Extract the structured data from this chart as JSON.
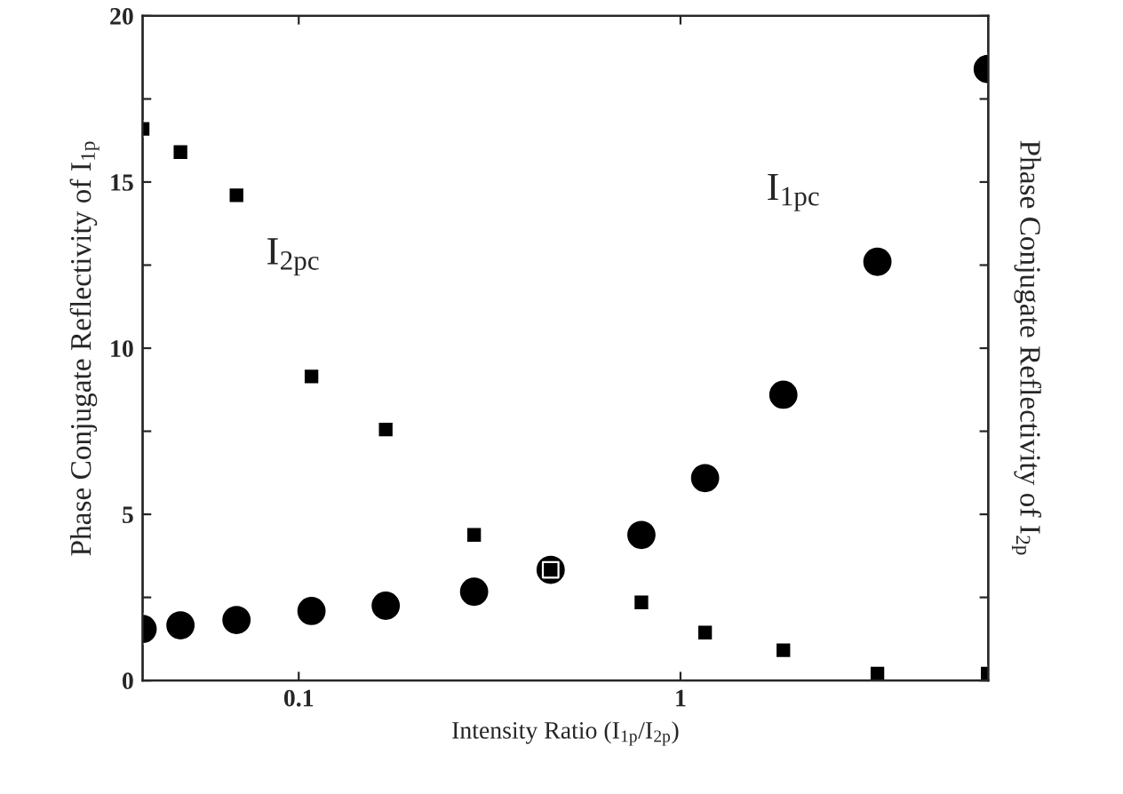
{
  "chart_data": {
    "type": "scatter",
    "xlabel": "Intensity Ratio (I$_{1p}$/I$_{2p}$)",
    "ylabel": "Phase Conjugate Reflectivity of I$_{1p}$",
    "y2label": "Phase Conjugate Reflectivity of I$_{2p}$",
    "log": "x",
    "xlim": [
      0.039,
      6.4
    ],
    "xticks": [
      0.1,
      1
    ],
    "ylim": [
      0,
      20
    ],
    "yticks": [
      0,
      {
        "value": 2.5,
        "label": null
      },
      5,
      {
        "value": 7.5,
        "label": null
      },
      10,
      {
        "value": 12.5,
        "label": null
      },
      15,
      {
        "value": 17.5,
        "label": null
      },
      20
    ],
    "grid": false,
    "legend": false,
    "series": [
      {
        "name": "I$_{2pc}$",
        "color": "#000000",
        "marker": "square",
        "x": [
          0.039,
          0.049,
          0.0687,
          0.108,
          0.169,
          0.288,
          0.457,
          0.79,
          1.16,
          1.86,
          3.28,
          6.38
        ],
        "values": [
          16.6,
          15.9,
          14.6,
          9.15,
          7.55,
          4.38,
          3.33,
          2.35,
          1.44,
          0.91,
          0.21,
          0.21
        ]
      },
      {
        "name": "I$_{1pc}$",
        "color": "#000000",
        "marker": "circle",
        "x": [
          0.039,
          0.049,
          0.0687,
          0.108,
          0.169,
          0.288,
          0.457,
          0.79,
          1.16,
          1.86,
          3.28,
          6.38
        ],
        "values": [
          1.55,
          1.66,
          1.82,
          2.09,
          2.25,
          2.67,
          3.33,
          4.38,
          6.09,
          8.6,
          12.6,
          18.4
        ]
      }
    ]
  }
}
